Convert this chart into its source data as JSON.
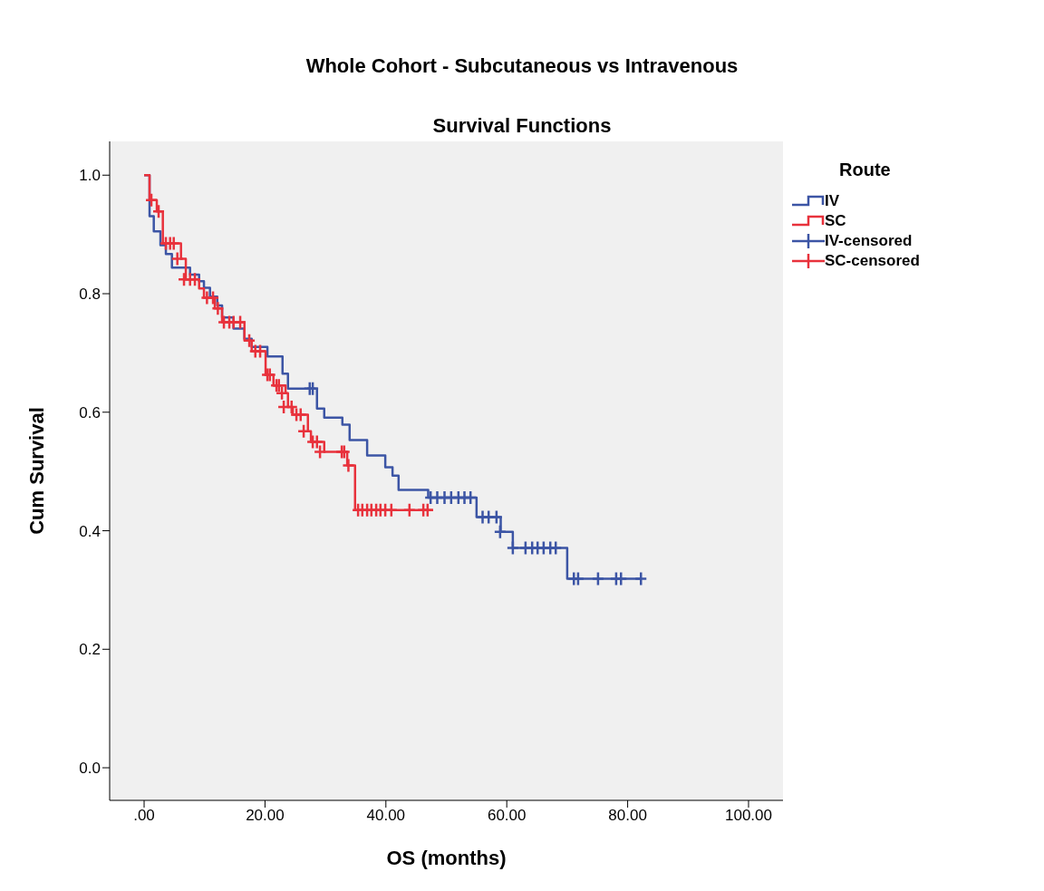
{
  "chart_data": {
    "type": "step",
    "title": "Whole Cohort - Subcutaneous vs Intravenous",
    "subtitle": "Survival Functions",
    "xlabel": "OS (months)",
    "ylabel": "Cum Survival",
    "legend_title": "Route",
    "legend": "top right",
    "grid": false,
    "xlim": [
      -5.7,
      105.7
    ],
    "ylim": [
      -0.055,
      1.057
    ],
    "xticks": [
      {
        "value": 0,
        "label": ".00"
      },
      {
        "value": 20,
        "label": "20.00"
      },
      {
        "value": 40,
        "label": "40.00"
      },
      {
        "value": 60,
        "label": "60.00"
      },
      {
        "value": 80,
        "label": "80.00"
      },
      {
        "value": 100,
        "label": "100.00"
      }
    ],
    "yticks": [
      {
        "value": 0,
        "label": "0.0"
      },
      {
        "value": 0.2,
        "label": "0.2"
      },
      {
        "value": 0.4,
        "label": "0.4"
      },
      {
        "value": 0.6,
        "label": "0.6"
      },
      {
        "value": 0.8,
        "label": "0.8"
      },
      {
        "value": 1,
        "label": "1.0"
      }
    ],
    "series": [
      {
        "name": "IV",
        "color": "#3c55a5",
        "marker": "none",
        "x": [
          0,
          0.9,
          1.6,
          2.7,
          3.6,
          4.6,
          7.6,
          9.1,
          9.9,
          10.9,
          12.1,
          12.9,
          14.8,
          16.6,
          17.8,
          18.5,
          20.4,
          22.9,
          23.8,
          28.6,
          29.8,
          32.8,
          34,
          36.9,
          39.9,
          41.1,
          42.1,
          47,
          55,
          59,
          61,
          70,
          82.2
        ],
        "values": [
          1,
          0.931,
          0.905,
          0.882,
          0.867,
          0.844,
          0.832,
          0.821,
          0.81,
          0.795,
          0.78,
          0.76,
          0.741,
          0.724,
          0.71,
          0.71,
          0.694,
          0.665,
          0.64,
          0.606,
          0.591,
          0.579,
          0.553,
          0.527,
          0.507,
          0.493,
          0.469,
          0.456,
          0.423,
          0.398,
          0.371,
          0.319,
          0.319
        ]
      },
      {
        "name": "SC",
        "color": "#e8323c",
        "marker": "none",
        "x": [
          0,
          0.9,
          2.1,
          3.1,
          6.1,
          6.9,
          9.1,
          9.9,
          11.7,
          12.9,
          16.6,
          17.8,
          20.1,
          21.4,
          23.4,
          23.8,
          24.6,
          27.1,
          27.6,
          29.8,
          33.6,
          34.9,
          47.8
        ],
        "values": [
          1,
          0.958,
          0.939,
          0.885,
          0.859,
          0.824,
          0.809,
          0.793,
          0.775,
          0.752,
          0.721,
          0.703,
          0.663,
          0.645,
          0.632,
          0.609,
          0.596,
          0.568,
          0.55,
          0.533,
          0.51,
          0.435,
          0.435
        ]
      },
      {
        "name": "IV-censored",
        "type": "scatter",
        "color": "#3c55a5",
        "marker": "cross",
        "x": [
          27.4,
          27.9,
          47.4,
          48.5,
          49.7,
          50.8,
          52,
          53,
          54,
          56,
          57,
          58.3,
          58.9,
          61,
          63.1,
          64.2,
          65.1,
          66.1,
          67.2,
          68.1,
          71.1,
          71.8,
          75.1,
          78.1,
          78.9,
          82.2
        ],
        "values": [
          0.64,
          0.64,
          0.456,
          0.456,
          0.456,
          0.456,
          0.456,
          0.456,
          0.456,
          0.423,
          0.423,
          0.423,
          0.398,
          0.371,
          0.371,
          0.371,
          0.371,
          0.371,
          0.371,
          0.371,
          0.319,
          0.319,
          0.319,
          0.319,
          0.319,
          0.319
        ]
      },
      {
        "name": "SC-censored",
        "type": "scatter",
        "color": "#e8323c",
        "marker": "cross",
        "x": [
          1.2,
          2.4,
          3.6,
          4.3,
          4.9,
          5.5,
          6.6,
          7.6,
          8.4,
          10.4,
          11.4,
          12.2,
          13.2,
          14.1,
          14.8,
          15.9,
          17.4,
          18.4,
          19.2,
          20.4,
          20.8,
          21.9,
          22.3,
          22.8,
          23.1,
          24.4,
          25.2,
          25.9,
          26.4,
          27.9,
          28.6,
          29.1,
          32.7,
          33.1,
          33.8,
          35.4,
          36.1,
          36.9,
          37.6,
          38.4,
          39.1,
          39.9,
          40.9,
          43.9,
          46.2,
          46.9
        ],
        "values": [
          0.958,
          0.939,
          0.885,
          0.885,
          0.885,
          0.859,
          0.824,
          0.824,
          0.824,
          0.793,
          0.793,
          0.775,
          0.752,
          0.752,
          0.752,
          0.752,
          0.721,
          0.703,
          0.703,
          0.663,
          0.663,
          0.645,
          0.645,
          0.632,
          0.609,
          0.609,
          0.596,
          0.596,
          0.568,
          0.55,
          0.55,
          0.533,
          0.533,
          0.533,
          0.51,
          0.435,
          0.435,
          0.435,
          0.435,
          0.435,
          0.435,
          0.435,
          0.435,
          0.435,
          0.435,
          0.435
        ]
      }
    ]
  }
}
